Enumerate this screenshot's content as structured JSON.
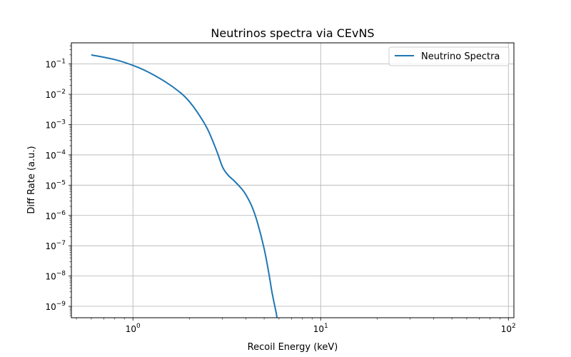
{
  "chart_data": {
    "type": "line",
    "title": "Neutrinos spectra via CEvNS",
    "xlabel": "Recoil Energy (keV)",
    "ylabel": "Diff Rate (a.u.)",
    "xscale": "log",
    "yscale": "log",
    "xlim": [
      0.47,
      107
    ],
    "ylim": [
      4.2e-10,
      0.5
    ],
    "grid": true,
    "legend": "top-right",
    "x_ticks": [
      {
        "value": 1,
        "base": "10",
        "exp": "0"
      },
      {
        "value": 10,
        "base": "10",
        "exp": "1"
      },
      {
        "value": 100,
        "base": "10",
        "exp": "2"
      }
    ],
    "y_ticks": [
      {
        "value": 1e-09,
        "base": "10",
        "exp": "−9"
      },
      {
        "value": 1e-08,
        "base": "10",
        "exp": "−8"
      },
      {
        "value": 1e-07,
        "base": "10",
        "exp": "−7"
      },
      {
        "value": 1e-06,
        "base": "10",
        "exp": "−6"
      },
      {
        "value": 1e-05,
        "base": "10",
        "exp": "−5"
      },
      {
        "value": 0.0001,
        "base": "10",
        "exp": "−4"
      },
      {
        "value": 0.001,
        "base": "10",
        "exp": "−3"
      },
      {
        "value": 0.01,
        "base": "10",
        "exp": "−2"
      },
      {
        "value": 0.1,
        "base": "10",
        "exp": "−1"
      }
    ],
    "series": [
      {
        "name": "Neutrino Spectra",
        "color": "#1f77b4",
        "x": [
          0.6,
          0.8,
          1.0,
          1.2,
          1.5,
          1.8,
          2.0,
          2.2,
          2.5,
          2.8,
          3.0,
          3.2,
          3.5,
          3.8,
          4.0,
          4.3,
          4.6,
          5.0,
          5.3,
          5.5,
          5.7,
          5.8,
          5.85
        ],
        "y": [
          0.2,
          0.14,
          0.09,
          0.055,
          0.025,
          0.011,
          0.0057,
          0.0026,
          0.0007,
          0.00013,
          4e-05,
          2.2e-05,
          1.3e-05,
          7.5e-06,
          4.8e-06,
          2e-06,
          6e-07,
          8e-08,
          1.2e-08,
          3e-09,
          1e-09,
          6e-10,
          4.2e-10
        ]
      }
    ]
  }
}
